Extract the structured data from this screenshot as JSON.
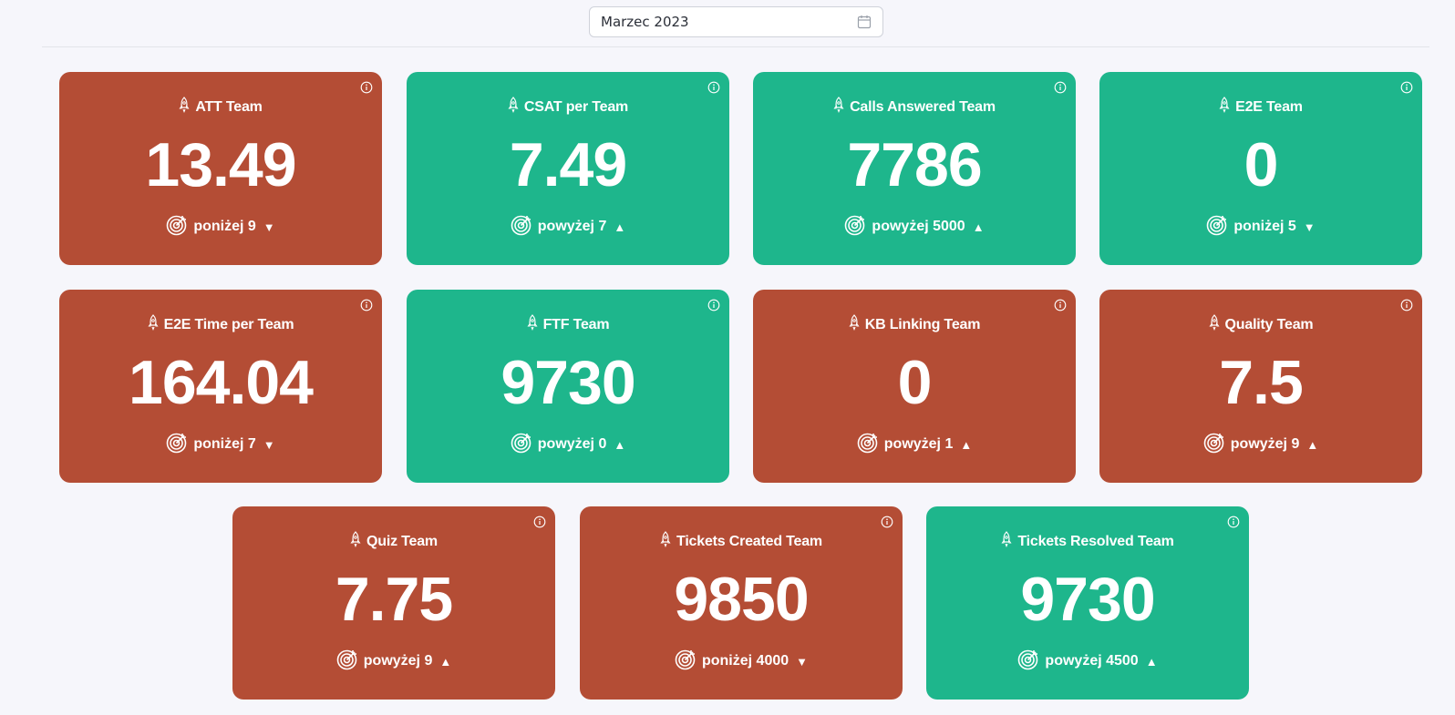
{
  "date_picker": {
    "value": "Marzec 2023",
    "icon": "calendar-icon"
  },
  "colors": {
    "below": "#b44d35",
    "above": "#1eb68c",
    "background": "#f6f6fb"
  },
  "cards": [
    {
      "title": "ATT Team",
      "value": "13.49",
      "target": "poniżej 9",
      "direction": "down",
      "status": "red"
    },
    {
      "title": "CSAT per Team",
      "value": "7.49",
      "target": "powyżej 7",
      "direction": "up",
      "status": "green"
    },
    {
      "title": "Calls Answered Team",
      "value": "7786",
      "target": "powyżej 5000",
      "direction": "up",
      "status": "green"
    },
    {
      "title": "E2E Team",
      "value": "0",
      "target": "poniżej 5",
      "direction": "down",
      "status": "green"
    },
    {
      "title": "E2E Time per Team",
      "value": "164.04",
      "target": "poniżej 7",
      "direction": "down",
      "status": "red"
    },
    {
      "title": "FTF Team",
      "value": "9730",
      "target": "powyżej 0",
      "direction": "up",
      "status": "green"
    },
    {
      "title": "KB Linking Team",
      "value": "0",
      "target": "powyżej 1",
      "direction": "up",
      "status": "red"
    },
    {
      "title": "Quality Team",
      "value": "7.5",
      "target": "powyżej 9",
      "direction": "up",
      "status": "red"
    },
    {
      "title": "Quiz Team",
      "value": "7.75",
      "target": "powyżej 9",
      "direction": "up",
      "status": "red"
    },
    {
      "title": "Tickets Created Team",
      "value": "9850",
      "target": "poniżej 4000",
      "direction": "down",
      "status": "red"
    },
    {
      "title": "Tickets Resolved Team",
      "value": "9730",
      "target": "powyżej 4500",
      "direction": "up",
      "status": "green"
    }
  ],
  "arrows": {
    "up": "▲",
    "down": "▼"
  }
}
